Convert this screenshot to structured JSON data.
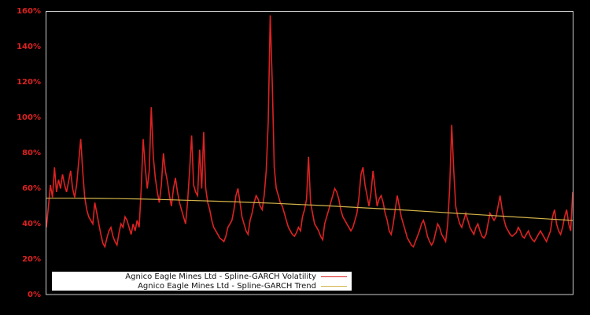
{
  "chart_data": {
    "type": "line",
    "title": "",
    "xlabel": "",
    "ylabel": "",
    "ylim": [
      0,
      160
    ],
    "y_unit": "%",
    "yticks": [
      "0%",
      "20%",
      "40%",
      "60%",
      "80%",
      "100%",
      "120%",
      "140%",
      "160%"
    ],
    "xticks": [],
    "grid": false,
    "legend_position": "lower-left",
    "background": "#000000",
    "frame_color": "#cccccc",
    "series": [
      {
        "name": "Agnico Eagle Mines Ltd - Spline-GARCH Volatility",
        "color": "#dd2222",
        "values": [
          38,
          50,
          62,
          55,
          72,
          58,
          65,
          60,
          68,
          62,
          58,
          64,
          70,
          60,
          55,
          62,
          75,
          88,
          70,
          55,
          48,
          44,
          42,
          40,
          52,
          46,
          40,
          34,
          29,
          27,
          32,
          36,
          38,
          33,
          30,
          28,
          35,
          40,
          38,
          44,
          42,
          38,
          34,
          40,
          36,
          42,
          38,
          60,
          88,
          72,
          60,
          70,
          106,
          78,
          66,
          58,
          52,
          62,
          80,
          70,
          64,
          56,
          50,
          60,
          66,
          58,
          52,
          48,
          44,
          40,
          52,
          70,
          90,
          62,
          58,
          56,
          82,
          60,
          92,
          60,
          52,
          48,
          42,
          38,
          36,
          34,
          32,
          31,
          30,
          33,
          38,
          40,
          42,
          48,
          56,
          60,
          52,
          44,
          40,
          36,
          34,
          42,
          46,
          52,
          56,
          54,
          50,
          48,
          56,
          70,
          98,
          158,
          120,
          72,
          60,
          56,
          52,
          50,
          46,
          42,
          38,
          36,
          34,
          33,
          35,
          38,
          36,
          44,
          48,
          54,
          78,
          52,
          46,
          40,
          38,
          36,
          33,
          31,
          40,
          44,
          48,
          52,
          56,
          60,
          58,
          54,
          48,
          44,
          42,
          40,
          38,
          36,
          38,
          42,
          46,
          55,
          68,
          72,
          62,
          56,
          50,
          58,
          70,
          60,
          50,
          54,
          56,
          52,
          46,
          42,
          36,
          34,
          40,
          48,
          56,
          50,
          44,
          40,
          36,
          32,
          30,
          28,
          27,
          30,
          33,
          36,
          40,
          42,
          38,
          33,
          30,
          28,
          30,
          35,
          40,
          38,
          34,
          32,
          30,
          40,
          60,
          96,
          70,
          50,
          44,
          40,
          38,
          42,
          46,
          42,
          38,
          36,
          34,
          38,
          40,
          36,
          33,
          32,
          34,
          40,
          46,
          44,
          42,
          44,
          50,
          56,
          48,
          42,
          38,
          36,
          34,
          33,
          34,
          35,
          38,
          36,
          33,
          32,
          34,
          36,
          33,
          31,
          30,
          32,
          34,
          36,
          34,
          32,
          30,
          33,
          36,
          44,
          48,
          40,
          36,
          34,
          38,
          44,
          48,
          40,
          36,
          58
        ]
      },
      {
        "name": "Agnico Eagle Mines Ltd - Spline-GARCH Trend",
        "color": "#d4b44a",
        "values": [
          54.5,
          54.5,
          54.4,
          54.3,
          54.1,
          53.8,
          53.4,
          53.0,
          52.6,
          52.1,
          51.6,
          51.0,
          50.4,
          49.7,
          49.0,
          48.3,
          47.5,
          46.7,
          45.9,
          45.1,
          44.3,
          43.5,
          42.7,
          42.0
        ]
      }
    ]
  },
  "legend": {
    "items": [
      {
        "label": "Agnico Eagle Mines Ltd - Spline-GARCH Volatility",
        "color": "#dd2222"
      },
      {
        "label": "Agnico Eagle Mines Ltd - Spline-GARCH Trend",
        "color": "#d4b44a"
      }
    ]
  }
}
